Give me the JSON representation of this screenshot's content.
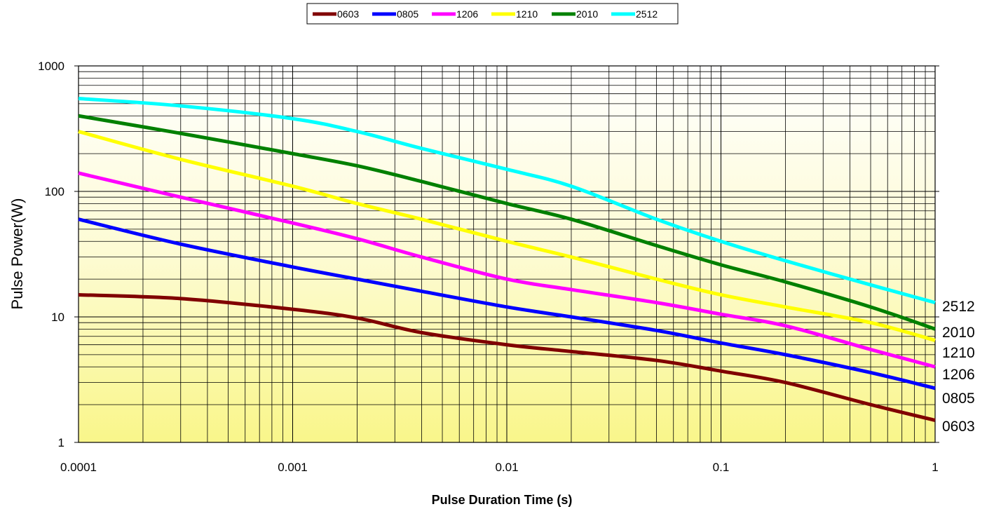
{
  "chart_data": {
    "type": "line",
    "title": "",
    "xlabel": "Pulse Duration Time (s)",
    "ylabel": "Pulse Power(W)",
    "x_scale": "log",
    "y_scale": "log",
    "xlim": [
      0.0001,
      1
    ],
    "ylim": [
      1,
      1000
    ],
    "grid": true,
    "legend_position": "top-center",
    "x_ticks": [
      "0.0001",
      "0.001",
      "0.01",
      "0.1",
      "1"
    ],
    "y_ticks": [
      "1",
      "10",
      "100",
      "1000"
    ],
    "series": [
      {
        "name": "0603",
        "color": "#800000",
        "end_label": "0603",
        "x": [
          0.0001,
          0.0003,
          0.001,
          0.002,
          0.004,
          0.01,
          0.02,
          0.05,
          0.1,
          0.2,
          0.5,
          1
        ],
        "y": [
          15,
          14,
          11.5,
          9.8,
          7.5,
          6,
          5.3,
          4.5,
          3.7,
          3,
          2,
          1.5
        ]
      },
      {
        "name": "0805",
        "color": "#0000ff",
        "end_label": "0805",
        "x": [
          0.0001,
          0.0003,
          0.001,
          0.002,
          0.004,
          0.01,
          0.02,
          0.05,
          0.1,
          0.2,
          0.5,
          1
        ],
        "y": [
          60,
          38,
          25,
          20,
          16,
          12,
          10,
          7.8,
          6.2,
          5,
          3.6,
          2.7
        ]
      },
      {
        "name": "1206",
        "color": "#ff00ff",
        "end_label": "1206",
        "x": [
          0.0001,
          0.0003,
          0.001,
          0.002,
          0.004,
          0.01,
          0.02,
          0.05,
          0.1,
          0.2,
          0.5,
          1
        ],
        "y": [
          140,
          90,
          56,
          42,
          30,
          20,
          16.5,
          13,
          10.5,
          8.5,
          5.5,
          4
        ]
      },
      {
        "name": "1210",
        "color": "#ffff00",
        "end_label": "1210",
        "x": [
          0.0001,
          0.0003,
          0.001,
          0.002,
          0.004,
          0.01,
          0.02,
          0.05,
          0.1,
          0.2,
          0.5,
          1
        ],
        "y": [
          300,
          180,
          110,
          80,
          60,
          40,
          30,
          20,
          15,
          12,
          9,
          6.5
        ]
      },
      {
        "name": "2010",
        "color": "#008000",
        "end_label": "2010",
        "x": [
          0.0001,
          0.0003,
          0.001,
          0.002,
          0.004,
          0.01,
          0.02,
          0.05,
          0.1,
          0.2,
          0.5,
          1
        ],
        "y": [
          400,
          290,
          200,
          160,
          120,
          80,
          60,
          37,
          26,
          19,
          12,
          8
        ]
      },
      {
        "name": "2512",
        "color": "#00ffff",
        "end_label": "2512",
        "x": [
          0.0001,
          0.0003,
          0.001,
          0.002,
          0.004,
          0.01,
          0.02,
          0.05,
          0.1,
          0.2,
          0.5,
          1
        ],
        "y": [
          550,
          480,
          380,
          300,
          220,
          150,
          110,
          60,
          40,
          28,
          18,
          13
        ]
      }
    ]
  }
}
